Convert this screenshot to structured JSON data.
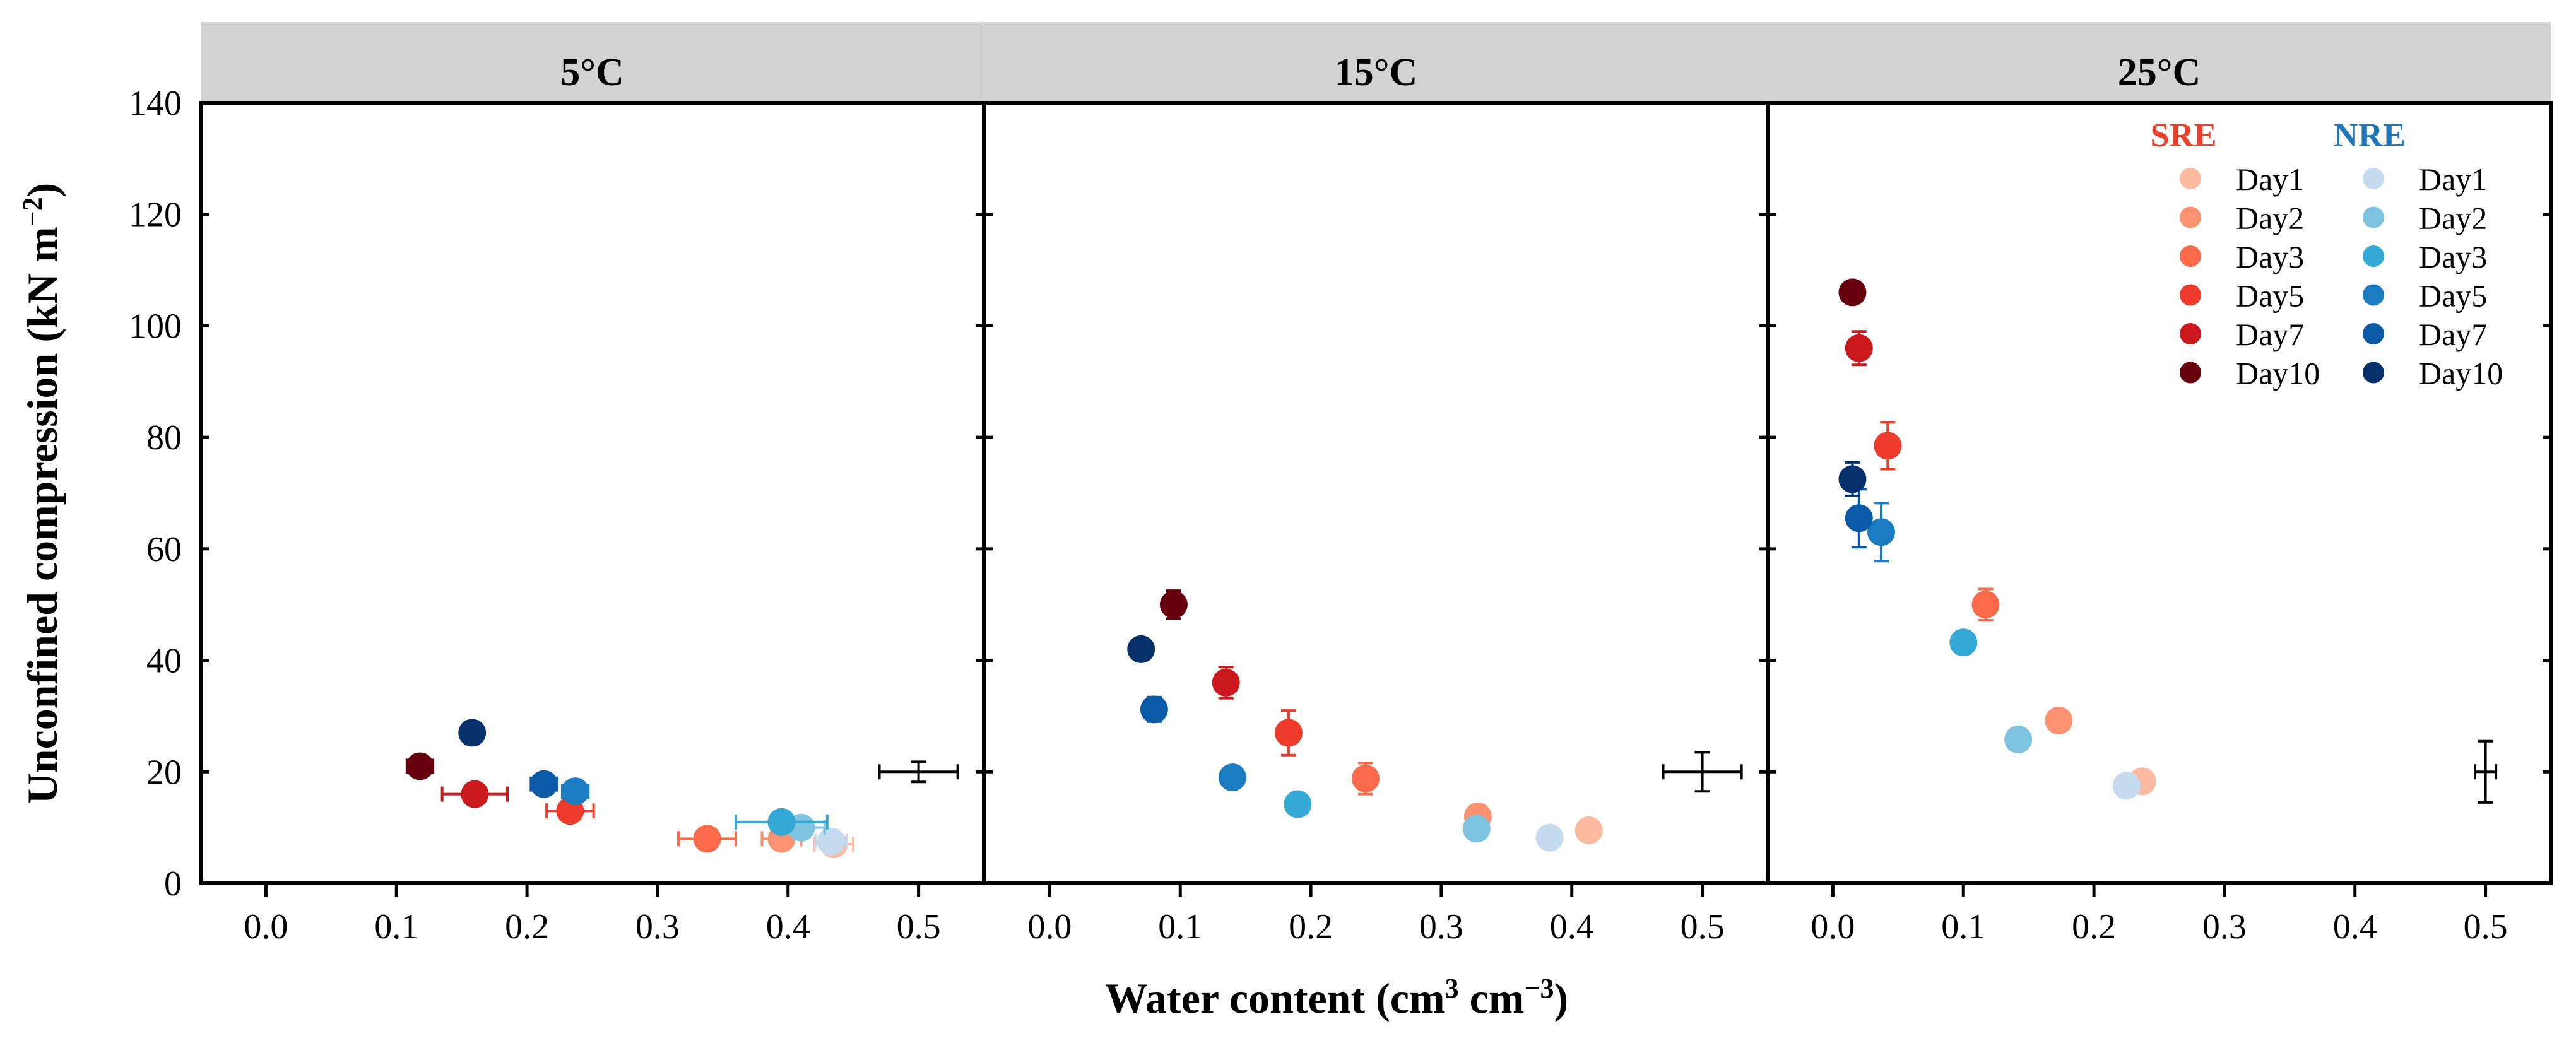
{
  "chart_data": {
    "type": "scatter",
    "ylabel": "Unconfined compression",
    "ylabel_unit_base": "(kN m",
    "ylabel_unit_sup": "−2",
    "ylabel_unit_close": ")",
    "xlabel": "Water content",
    "xlabel_unit_a": "(cm",
    "xlabel_unit_a_sup": "3",
    "xlabel_unit_b": " cm",
    "xlabel_unit_b_sup": "−3",
    "xlabel_unit_close": ")",
    "xlim": [
      -0.05,
      0.55
    ],
    "ylim": [
      0,
      140
    ],
    "xticks": [
      "0.0",
      "0.1",
      "0.2",
      "0.3",
      "0.4",
      "0.5"
    ],
    "yticks": [
      "0",
      "20",
      "40",
      "60",
      "80",
      "100",
      "120",
      "140"
    ],
    "legend": {
      "position": "top-right of 25°C panel",
      "sre_title": "SRE",
      "nre_title": "NRE",
      "sre_color": "#e8402a",
      "nre_color": "#1f77b8",
      "days": [
        "Day1",
        "Day2",
        "Day3",
        "Day5",
        "Day7",
        "Day10"
      ]
    },
    "colors": {
      "SRE": [
        "#fcbba1",
        "#fc9272",
        "#fb6a4a",
        "#ef3b2c",
        "#cb181d",
        "#67000d"
      ],
      "NRE": [
        "#c6dbef",
        "#7ec4e0",
        "#35a9d6",
        "#1a7bc0",
        "#0b5aa8",
        "#08306b"
      ]
    },
    "panels": [
      {
        "title": "5°C",
        "reference_error_bar": {
          "x": 0.5,
          "y": 20,
          "xerr": 0.03,
          "yerr": 1.8
        },
        "series": [
          {
            "name": "SRE",
            "points": [
              {
                "day": "Day1",
                "x": 0.435,
                "y": 7,
                "xerr": 0.015,
                "yerr": 1
              },
              {
                "day": "Day2",
                "x": 0.395,
                "y": 8,
                "xerr": 0.015,
                "yerr": 1
              },
              {
                "day": "Day3",
                "x": 0.338,
                "y": 8,
                "xerr": 0.022,
                "yerr": 1
              },
              {
                "day": "Day5",
                "x": 0.233,
                "y": 13,
                "xerr": 0.018,
                "yerr": 1.5
              },
              {
                "day": "Day7",
                "x": 0.16,
                "y": 16,
                "xerr": 0.025,
                "yerr": 1.5
              },
              {
                "day": "Day10",
                "x": 0.118,
                "y": 21,
                "xerr": 0.01,
                "yerr": 1.5
              }
            ]
          },
          {
            "name": "NRE",
            "points": [
              {
                "day": "Day1",
                "x": 0.433,
                "y": 7.5,
                "xerr": 0.012,
                "yerr": 1
              },
              {
                "day": "Day2",
                "x": 0.41,
                "y": 10,
                "xerr": 0.018,
                "yerr": 1
              },
              {
                "day": "Day3",
                "x": 0.395,
                "y": 11,
                "xerr": 0.035,
                "yerr": 1.2
              },
              {
                "day": "Day5",
                "x": 0.237,
                "y": 16.5,
                "xerr": 0.01,
                "yerr": 1.5
              },
              {
                "day": "Day7",
                "x": 0.213,
                "y": 17.8,
                "xerr": 0.01,
                "yerr": 1.5
              },
              {
                "day": "Day10",
                "x": 0.158,
                "y": 27,
                "xerr": 0.008,
                "yerr": 2
              }
            ]
          }
        ]
      },
      {
        "title": "15°C",
        "reference_error_bar": {
          "x": 0.5,
          "y": 20,
          "xerr": 0.03,
          "yerr": 3.5
        },
        "series": [
          {
            "name": "SRE",
            "points": [
              {
                "day": "Day1",
                "x": 0.413,
                "y": 9.5,
                "xerr": 0.005,
                "yerr": 1
              },
              {
                "day": "Day2",
                "x": 0.328,
                "y": 12,
                "xerr": 0.005,
                "yerr": 1.2
              },
              {
                "day": "Day3",
                "x": 0.242,
                "y": 18.8,
                "xerr": 0.005,
                "yerr": 2.8
              },
              {
                "day": "Day5",
                "x": 0.183,
                "y": 27,
                "xerr": 0.005,
                "yerr": 4
              },
              {
                "day": "Day7",
                "x": 0.135,
                "y": 36,
                "xerr": 0.005,
                "yerr": 2.8
              },
              {
                "day": "Day10",
                "x": 0.095,
                "y": 50,
                "xerr": 0.005,
                "yerr": 2.5
              }
            ]
          },
          {
            "name": "NRE",
            "points": [
              {
                "day": "Day1",
                "x": 0.383,
                "y": 8.2,
                "xerr": 0.005,
                "yerr": 1
              },
              {
                "day": "Day2",
                "x": 0.327,
                "y": 9.8,
                "xerr": 0.005,
                "yerr": 1
              },
              {
                "day": "Day3",
                "x": 0.19,
                "y": 14.2,
                "xerr": 0.005,
                "yerr": 1.5
              },
              {
                "day": "Day5",
                "x": 0.14,
                "y": 19,
                "xerr": 0.005,
                "yerr": 1.2
              },
              {
                "day": "Day7",
                "x": 0.08,
                "y": 31.2,
                "xerr": 0.006,
                "yerr": 2.2
              },
              {
                "day": "Day10",
                "x": 0.07,
                "y": 42,
                "xerr": 0.006,
                "yerr": 1.5
              }
            ]
          }
        ]
      },
      {
        "title": "25°C",
        "reference_error_bar": {
          "x": 0.5,
          "y": 20,
          "xerr": 0.008,
          "yerr": 5.5
        },
        "series": [
          {
            "name": "SRE",
            "points": [
              {
                "day": "Day1",
                "x": 0.237,
                "y": 18.3,
                "xerr": 0.005,
                "yerr": 1
              },
              {
                "day": "Day2",
                "x": 0.173,
                "y": 29.2,
                "xerr": 0.005,
                "yerr": 1.8
              },
              {
                "day": "Day3",
                "x": 0.117,
                "y": 50,
                "xerr": 0.006,
                "yerr": 2.8
              },
              {
                "day": "Day5",
                "x": 0.042,
                "y": 78.5,
                "xerr": 0.006,
                "yerr": 4.2
              },
              {
                "day": "Day7",
                "x": 0.02,
                "y": 96,
                "xerr": 0.006,
                "yerr": 3
              },
              {
                "day": "Day10",
                "x": 0.015,
                "y": 106,
                "xerr": 0.004,
                "yerr": 1
              }
            ]
          },
          {
            "name": "NRE",
            "points": [
              {
                "day": "Day1",
                "x": 0.225,
                "y": 17.5,
                "xerr": 0.005,
                "yerr": 1
              },
              {
                "day": "Day2",
                "x": 0.142,
                "y": 25.8,
                "xerr": 0.005,
                "yerr": 1.5
              },
              {
                "day": "Day3",
                "x": 0.1,
                "y": 43.2,
                "xerr": 0.005,
                "yerr": 2
              },
              {
                "day": "Day5",
                "x": 0.037,
                "y": 63,
                "xerr": 0.005,
                "yerr": 5.2
              },
              {
                "day": "Day7",
                "x": 0.02,
                "y": 65.5,
                "xerr": 0.008,
                "yerr": 5.2
              },
              {
                "day": "Day10",
                "x": 0.015,
                "y": 72.5,
                "xerr": 0.006,
                "yerr": 3
              }
            ]
          }
        ]
      }
    ]
  }
}
